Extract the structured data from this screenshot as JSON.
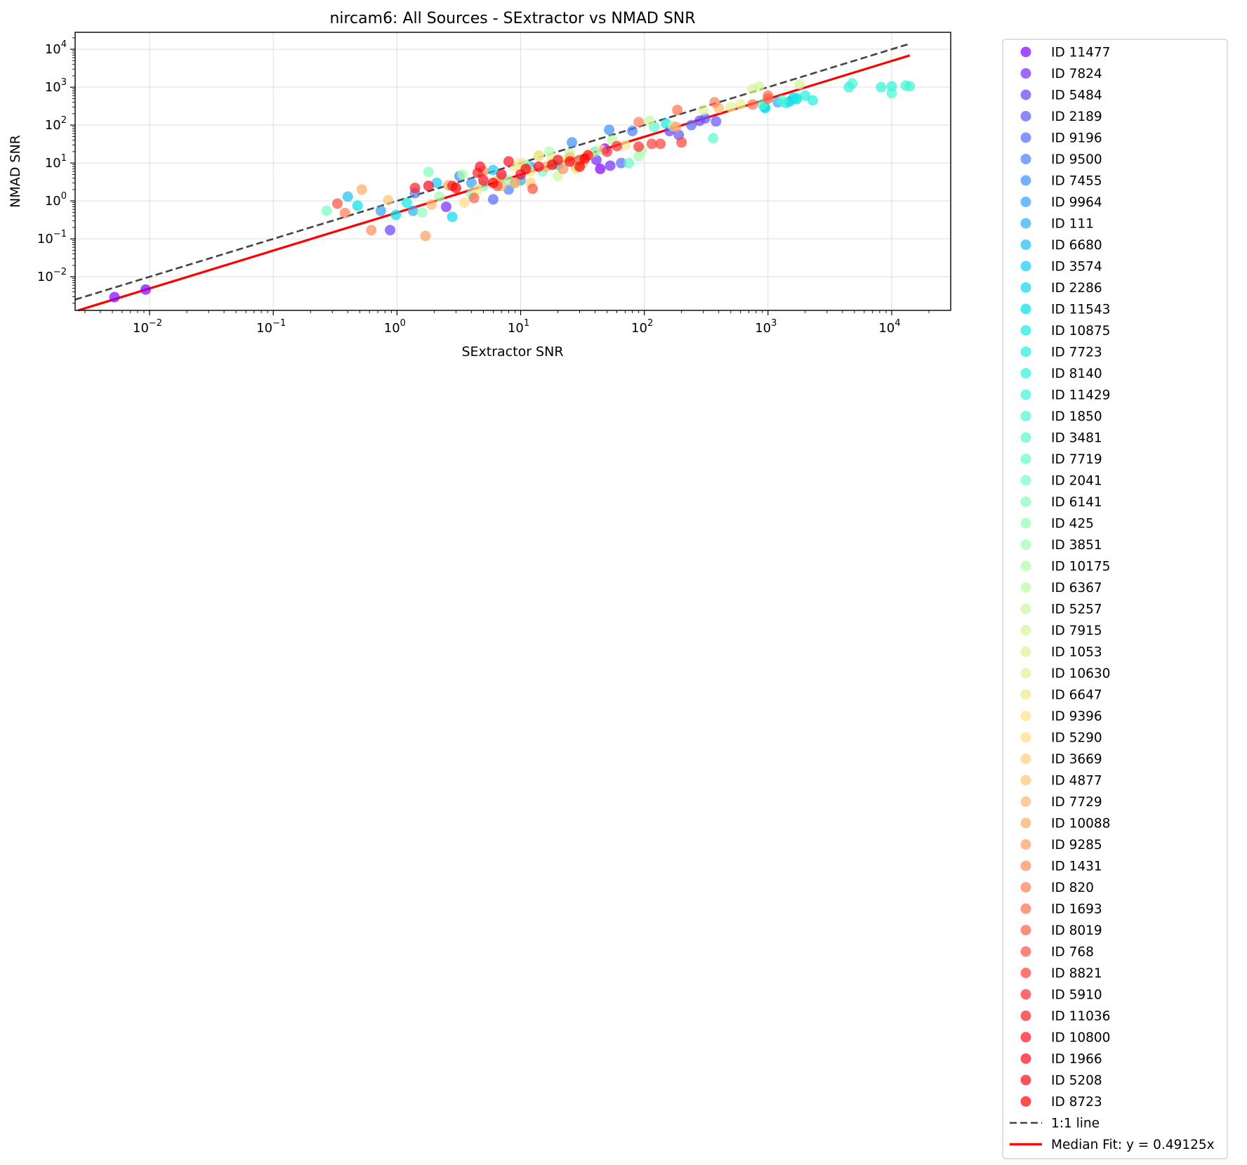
{
  "chart_data": {
    "type": "scatter",
    "title": "nircam6: All Sources - SExtractor vs NMAD SNR",
    "xlabel": "SExtractor SNR",
    "ylabel": "NMAD SNR",
    "xscale": "log",
    "yscale": "log",
    "xlim": [
      0.0025,
      30000
    ],
    "ylim": [
      0.0013,
      28000
    ],
    "grid": true,
    "legend_position": "outside-right",
    "x_ticks": [
      {
        "value": 0.01,
        "base": "10",
        "exp": "−2"
      },
      {
        "value": 0.1,
        "base": "10",
        "exp": "−1"
      },
      {
        "value": 1,
        "base": "10",
        "exp": "0"
      },
      {
        "value": 10,
        "base": "10",
        "exp": "1"
      },
      {
        "value": 100,
        "base": "10",
        "exp": "2"
      },
      {
        "value": 1000,
        "base": "10",
        "exp": "3"
      },
      {
        "value": 10000,
        "base": "10",
        "exp": "4"
      }
    ],
    "y_ticks": [
      {
        "value": 0.01,
        "base": "10",
        "exp": "−2"
      },
      {
        "value": 0.1,
        "base": "10",
        "exp": "−1"
      },
      {
        "value": 1,
        "base": "10",
        "exp": "0"
      },
      {
        "value": 10,
        "base": "10",
        "exp": "1"
      },
      {
        "value": 100,
        "base": "10",
        "exp": "2"
      },
      {
        "value": 1000,
        "base": "10",
        "exp": "3"
      },
      {
        "value": 10000,
        "base": "10",
        "exp": "4"
      }
    ],
    "lines": [
      {
        "label": "1:1 line",
        "slope": 1,
        "color": "#444444",
        "style": "dashed"
      },
      {
        "label": "Median Fit: y = 0.49125x",
        "slope": 0.49125,
        "color": "#ff0000",
        "style": "solid"
      }
    ],
    "series": [
      {
        "name": "ID 11477",
        "color": "#8000ff",
        "points": [
          [
            0.0052,
            0.0029
          ],
          [
            0.0093,
            0.0046
          ],
          [
            44,
            7
          ],
          [
            48,
            24
          ]
        ]
      },
      {
        "name": "ID 7824",
        "color": "#742aff",
        "points": [
          [
            2.5,
            0.7
          ],
          [
            53,
            8.5
          ],
          [
            41,
            12
          ]
        ]
      },
      {
        "name": "ID 5484",
        "color": "#6a3eff",
        "points": [
          [
            0.88,
            0.17
          ],
          [
            280,
            130
          ],
          [
            160,
            70
          ]
        ]
      },
      {
        "name": "ID 2189",
        "color": "#5e56fe",
        "points": [
          [
            380,
            125
          ],
          [
            190,
            55
          ],
          [
            310,
            150
          ]
        ]
      },
      {
        "name": "ID 9196",
        "color": "#5369fd",
        "points": [
          [
            6,
            1.1
          ],
          [
            65,
            10
          ],
          [
            240,
            100
          ]
        ]
      },
      {
        "name": "ID 9500",
        "color": "#4780fb",
        "points": [
          [
            1.4,
            1.6
          ],
          [
            8,
            2
          ],
          [
            80,
            70
          ]
        ]
      },
      {
        "name": "ID 7455",
        "color": "#3b90f9",
        "points": [
          [
            26,
            35
          ],
          [
            52,
            75
          ],
          [
            3.2,
            4.5
          ]
        ]
      },
      {
        "name": "ID 9964",
        "color": "#31a1f7",
        "points": [
          [
            0.74,
            0.55
          ],
          [
            4,
            3
          ],
          [
            12,
            8
          ]
        ]
      },
      {
        "name": "ID 111",
        "color": "#2bacf5",
        "points": [
          [
            1.35,
            0.55
          ],
          [
            10,
            3.5
          ],
          [
            1200,
            400
          ]
        ]
      },
      {
        "name": "ID 6680",
        "color": "#1ebef2",
        "points": [
          [
            0.4,
            1.3
          ],
          [
            940,
            300
          ],
          [
            1500,
            420
          ]
        ]
      },
      {
        "name": "ID 3574",
        "color": "#14caef",
        "points": [
          [
            2.1,
            3
          ],
          [
            6,
            6.5
          ],
          [
            1600,
            520
          ]
        ]
      },
      {
        "name": "ID 2286",
        "color": "#08d8ec",
        "points": [
          [
            2.8,
            0.38
          ],
          [
            20,
            9
          ],
          [
            1700,
            480
          ]
        ]
      },
      {
        "name": "ID 11543",
        "color": "#00e0e9",
        "points": [
          [
            0.48,
            0.75
          ],
          [
            0.98,
            0.43
          ],
          [
            950,
            280
          ]
        ]
      },
      {
        "name": "ID 10875",
        "color": "#14eae4",
        "points": [
          [
            1.2,
            0.9
          ],
          [
            150,
            110
          ],
          [
            1400,
            380
          ]
        ]
      },
      {
        "name": "ID 7723",
        "color": "#20eedf",
        "points": [
          [
            2000,
            600
          ],
          [
            2300,
            450
          ],
          [
            1700,
            520
          ]
        ]
      },
      {
        "name": "ID 8140",
        "color": "#2cf2db",
        "points": [
          [
            4500,
            1000
          ],
          [
            8200,
            1000
          ],
          [
            10000,
            1050
          ]
        ]
      },
      {
        "name": "ID 11429",
        "color": "#3cf6d5",
        "points": [
          [
            13000,
            1100
          ],
          [
            14000,
            1050
          ],
          [
            4800,
            1250
          ]
        ]
      },
      {
        "name": "ID 1850",
        "color": "#4af8d0",
        "points": [
          [
            10000,
            700
          ],
          [
            1300,
            450
          ],
          [
            900,
            350
          ]
        ]
      },
      {
        "name": "ID 3481",
        "color": "#5afbcb",
        "points": [
          [
            360,
            45
          ],
          [
            120,
            90
          ],
          [
            40,
            20
          ]
        ]
      },
      {
        "name": "ID 7719",
        "color": "#66fcc6",
        "points": [
          [
            75,
            10
          ],
          [
            30,
            12
          ],
          [
            18,
            10
          ]
        ]
      },
      {
        "name": "ID 2041",
        "color": "#76fec0",
        "points": [
          [
            0.27,
            0.55
          ],
          [
            5,
            2.5
          ],
          [
            15,
            6
          ]
        ]
      },
      {
        "name": "ID 6141",
        "color": "#82ffbb",
        "points": [
          [
            1.8,
            5.8
          ],
          [
            7,
            4
          ],
          [
            11,
            9
          ]
        ]
      },
      {
        "name": "ID 425",
        "color": "#92ffb5",
        "points": [
          [
            1.6,
            0.5
          ],
          [
            4,
            1.5
          ],
          [
            9,
            3
          ]
        ]
      },
      {
        "name": "ID 3851",
        "color": "#9efeb0",
        "points": [
          [
            2.2,
            1.3
          ],
          [
            8,
            3.5
          ],
          [
            90,
            15
          ]
        ]
      },
      {
        "name": "ID 10175",
        "color": "#aefdaa",
        "points": [
          [
            3.4,
            5
          ],
          [
            17,
            20
          ],
          [
            95,
            22
          ]
        ]
      },
      {
        "name": "ID 6367",
        "color": "#bafca5",
        "points": [
          [
            14,
            15
          ],
          [
            25,
            18
          ],
          [
            55,
            40
          ]
        ]
      },
      {
        "name": "ID 5257",
        "color": "#c8f99f",
        "points": [
          [
            20,
            4.5
          ],
          [
            110,
            130
          ],
          [
            170,
            95
          ]
        ]
      },
      {
        "name": "ID 7915",
        "color": "#d4f69a",
        "points": [
          [
            750,
            900
          ],
          [
            850,
            1050
          ],
          [
            1800,
            1200
          ]
        ]
      },
      {
        "name": "ID 1053",
        "color": "#e0f294",
        "points": [
          [
            300,
            250
          ],
          [
            500,
            300
          ],
          [
            22,
            12
          ]
        ]
      },
      {
        "name": "ID 10630",
        "color": "#eaee90",
        "points": [
          [
            9,
            8
          ],
          [
            18,
            14
          ],
          [
            600,
            350
          ]
        ]
      },
      {
        "name": "ID 6647",
        "color": "#f2ea8b",
        "points": [
          [
            28,
            7
          ],
          [
            12,
            6
          ],
          [
            45,
            22
          ]
        ]
      },
      {
        "name": "ID 9396",
        "color": "#fce486",
        "points": [
          [
            4.5,
            2
          ],
          [
            10,
            10
          ],
          [
            70,
            30
          ]
        ]
      },
      {
        "name": "ID 5290",
        "color": "#ffdd80",
        "points": [
          [
            3.5,
            0.9
          ],
          [
            14,
            16
          ],
          [
            36,
            17
          ]
        ]
      },
      {
        "name": "ID 3669",
        "color": "#ffd07a",
        "points": [
          [
            6.5,
            3.5
          ],
          [
            12,
            3
          ],
          [
            28,
            8
          ]
        ]
      },
      {
        "name": "ID 4877",
        "color": "#ffc474",
        "points": [
          [
            0.85,
            1.05
          ],
          [
            7,
            2.5
          ],
          [
            32,
            10
          ]
        ]
      },
      {
        "name": "ID 7729",
        "color": "#ffb86e",
        "points": [
          [
            1.9,
            0.8
          ],
          [
            25,
            14
          ],
          [
            400,
            280
          ]
        ]
      },
      {
        "name": "ID 10088",
        "color": "#ffaa67",
        "points": [
          [
            0.52,
            2
          ],
          [
            2.6,
            2.6
          ],
          [
            16,
            8
          ]
        ]
      },
      {
        "name": "ID 9285",
        "color": "#ff9c61",
        "points": [
          [
            1.7,
            0.12
          ],
          [
            9,
            3
          ],
          [
            180,
            90
          ]
        ]
      },
      {
        "name": "ID 1431",
        "color": "#ff8c5a",
        "points": [
          [
            0.62,
            0.17
          ],
          [
            5,
            6
          ],
          [
            22,
            7
          ]
        ]
      },
      {
        "name": "ID 820",
        "color": "#ff7e54",
        "points": [
          [
            0.38,
            0.48
          ],
          [
            90,
            120
          ],
          [
            370,
            400
          ]
        ]
      },
      {
        "name": "ID 1693",
        "color": "#ff6e4d",
        "points": [
          [
            185,
            250
          ],
          [
            750,
            350
          ],
          [
            1000,
            600
          ]
        ]
      },
      {
        "name": "ID 8019",
        "color": "#ff5e46",
        "points": [
          [
            4.2,
            1.2
          ],
          [
            30,
            12
          ],
          [
            1000,
            500
          ]
        ]
      },
      {
        "name": "ID 768",
        "color": "#ff4e3f",
        "points": [
          [
            0.33,
            0.85
          ],
          [
            6.5,
            2.5
          ],
          [
            12.5,
            2.1
          ]
        ]
      },
      {
        "name": "ID 8821",
        "color": "#ff3e38",
        "points": [
          [
            115,
            32
          ],
          [
            135,
            32
          ],
          [
            200,
            35
          ]
        ]
      },
      {
        "name": "ID 5910",
        "color": "#ff2e31",
        "points": [
          [
            90,
            27
          ],
          [
            50,
            20
          ],
          [
            60,
            28
          ]
        ]
      },
      {
        "name": "ID 11036",
        "color": "#ff1e2a",
        "points": [
          [
            1.4,
            2.2
          ],
          [
            2.8,
            2.5
          ],
          [
            4.5,
            5.5
          ]
        ]
      },
      {
        "name": "ID 10800",
        "color": "#ff1023",
        "points": [
          [
            4.7,
            8
          ],
          [
            8,
            11
          ],
          [
            35,
            16
          ]
        ]
      },
      {
        "name": "ID 1966",
        "color": "#ff0a20",
        "points": [
          [
            5,
            3.5
          ],
          [
            10,
            5
          ],
          [
            20,
            12
          ]
        ]
      },
      {
        "name": "ID 5208",
        "color": "#ff051d",
        "points": [
          [
            1.8,
            2.5
          ],
          [
            7,
            5
          ],
          [
            14,
            8
          ]
        ]
      },
      {
        "name": "ID 8723",
        "color": "#ff0000",
        "points": [
          [
            3,
            2.2
          ],
          [
            6,
            3
          ],
          [
            11,
            7
          ],
          [
            18,
            9
          ],
          [
            25,
            11
          ],
          [
            30,
            8
          ],
          [
            33,
            13
          ]
        ]
      }
    ]
  }
}
